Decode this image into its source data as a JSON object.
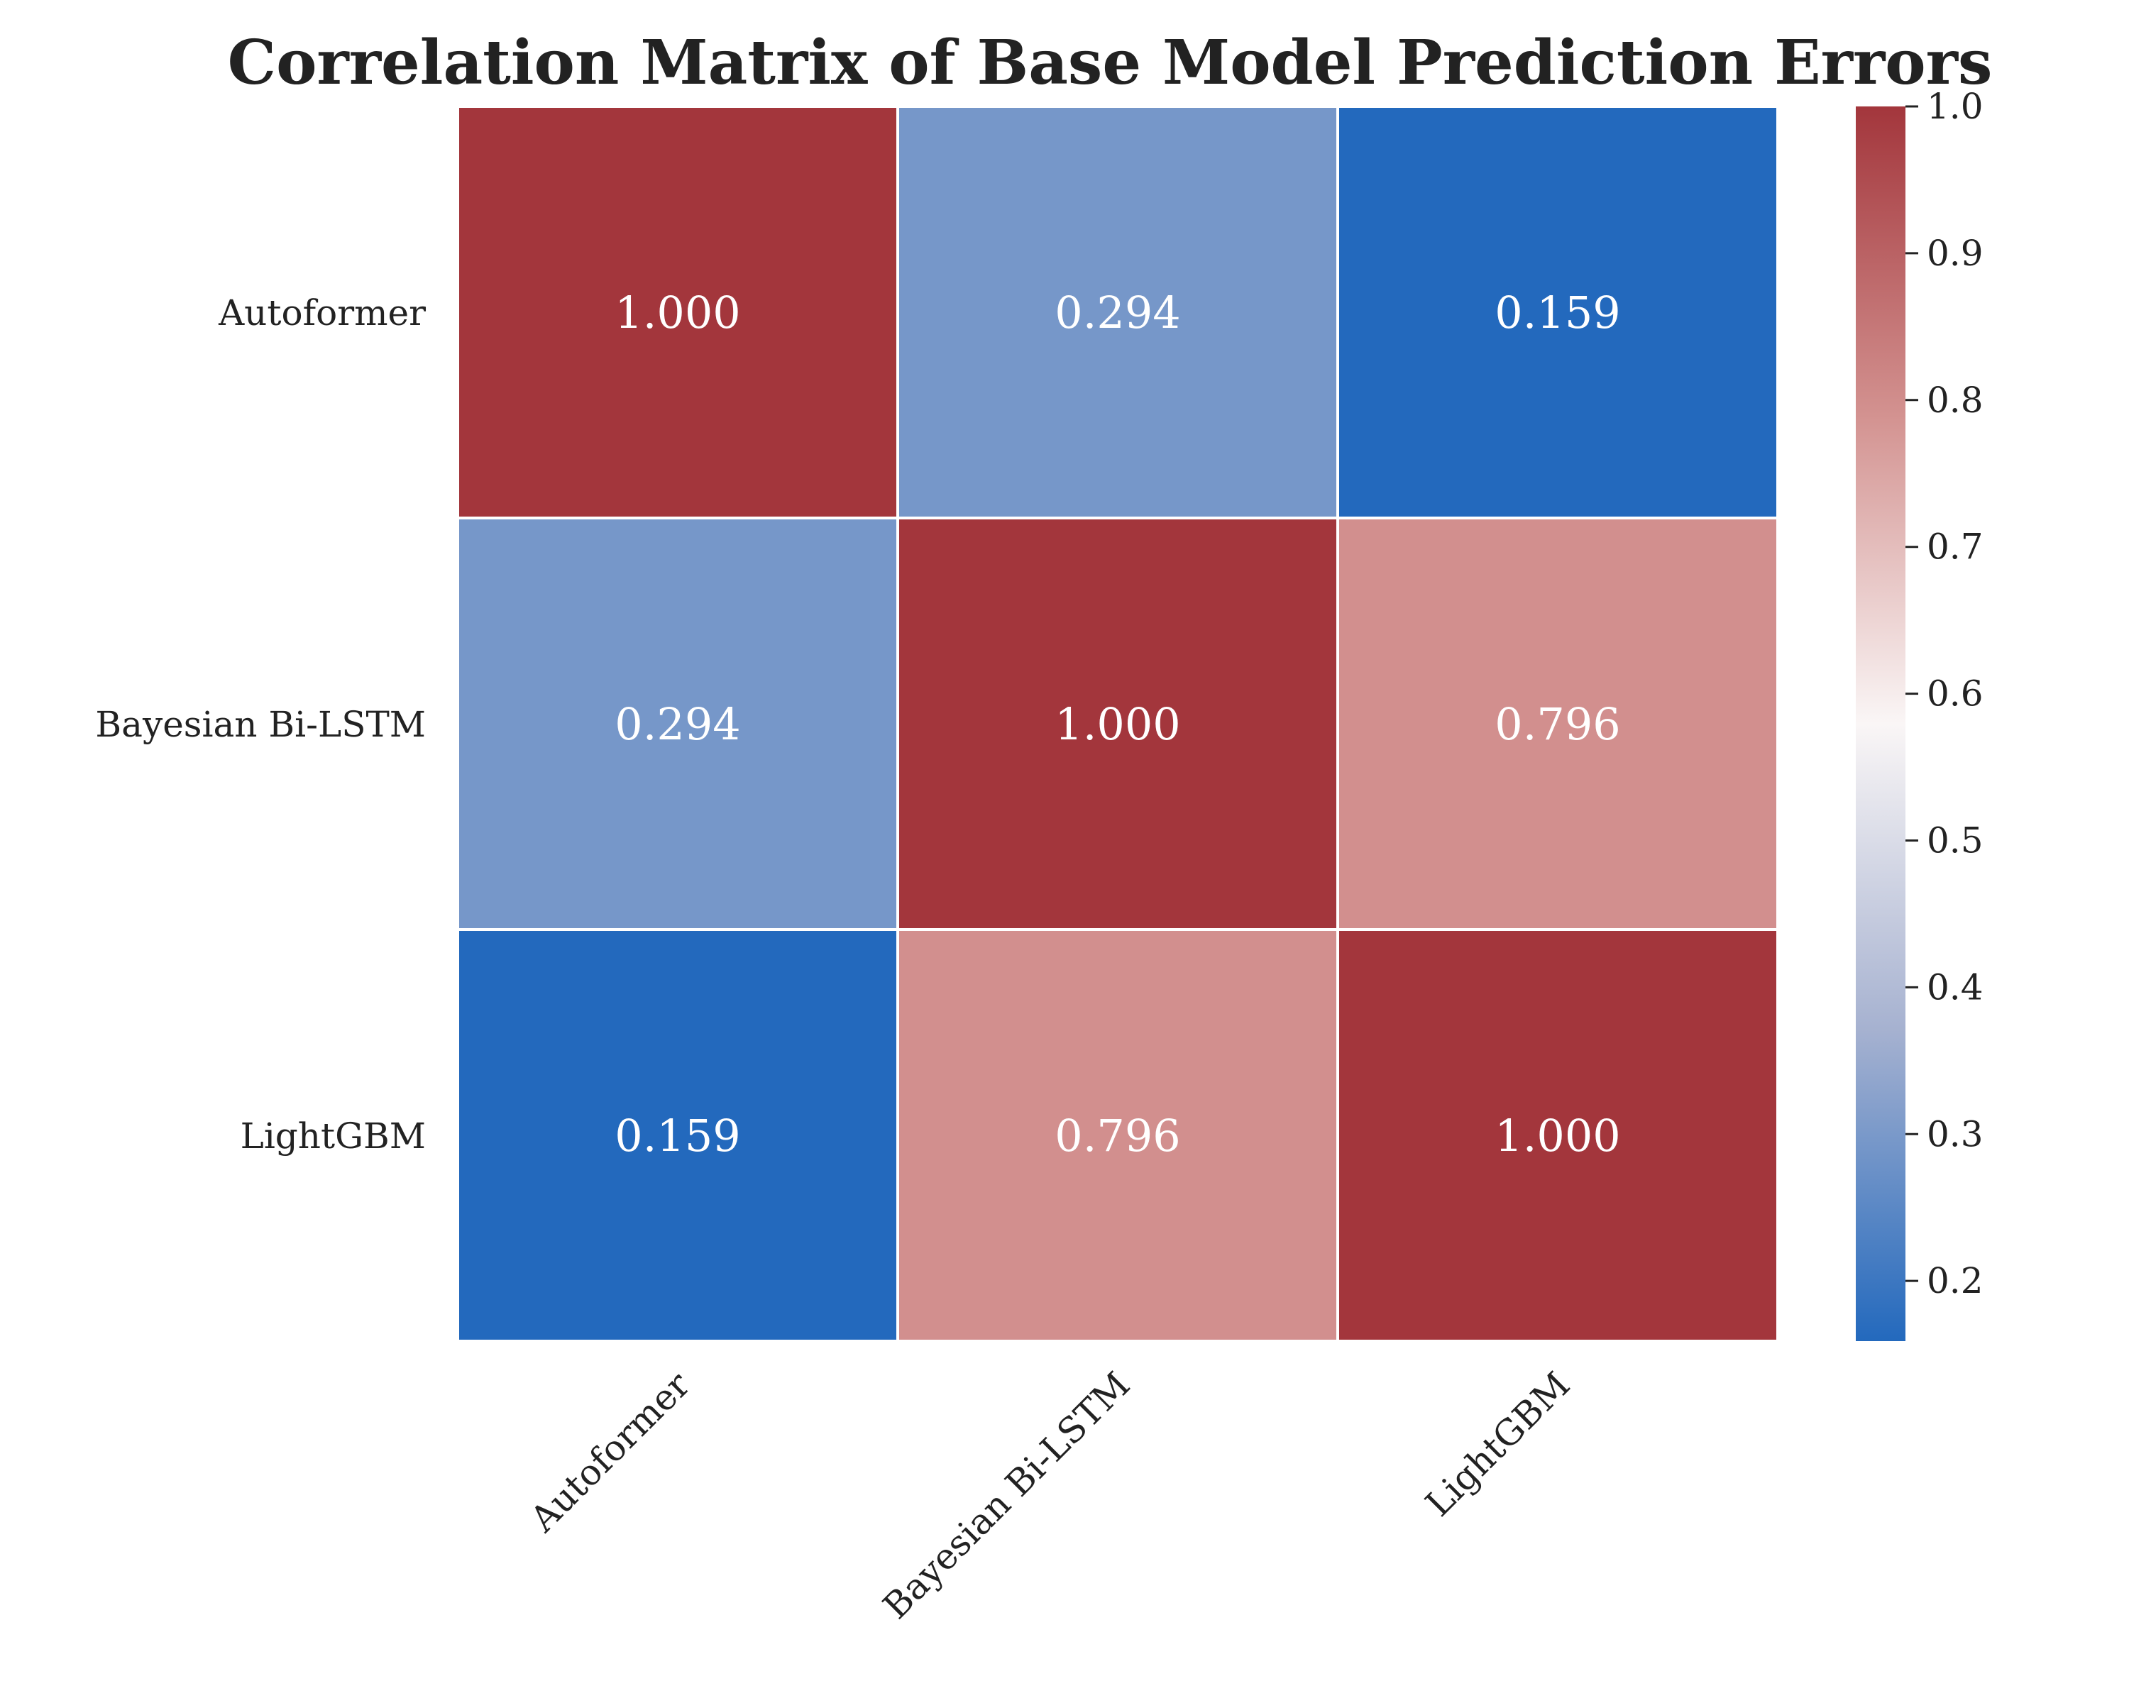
{
  "chart_data": {
    "type": "heatmap",
    "title": "Correlation Matrix of Base Model Prediction Errors",
    "row_labels": [
      "Autoformer",
      "Bayesian Bi-LSTM",
      "LightGBM"
    ],
    "col_labels": [
      "Autoformer",
      "Bayesian Bi-LSTM",
      "LightGBM"
    ],
    "values": [
      [
        1.0,
        0.294,
        0.159
      ],
      [
        0.294,
        1.0,
        0.796
      ],
      [
        0.159,
        0.796,
        1.0
      ]
    ],
    "value_labels": [
      [
        "1.000",
        "0.294",
        "0.159"
      ],
      [
        "0.294",
        "1.000",
        "0.796"
      ],
      [
        "0.159",
        "0.796",
        "1.000"
      ]
    ],
    "colorbar": {
      "min": 0.159,
      "max": 1.0,
      "ticks": [
        "0.2",
        "0.3",
        "0.4",
        "0.5",
        "0.6",
        "0.7",
        "0.8",
        "0.9",
        "1.0"
      ],
      "tick_values": [
        0.2,
        0.3,
        0.4,
        0.5,
        0.6,
        0.7,
        0.8,
        0.9,
        1.0
      ]
    },
    "colormap": {
      "name": "vlag",
      "stops": [
        "#2369bd",
        "#a5b1d0",
        "#faf6f6",
        "#d39290",
        "#a3363c"
      ]
    }
  }
}
